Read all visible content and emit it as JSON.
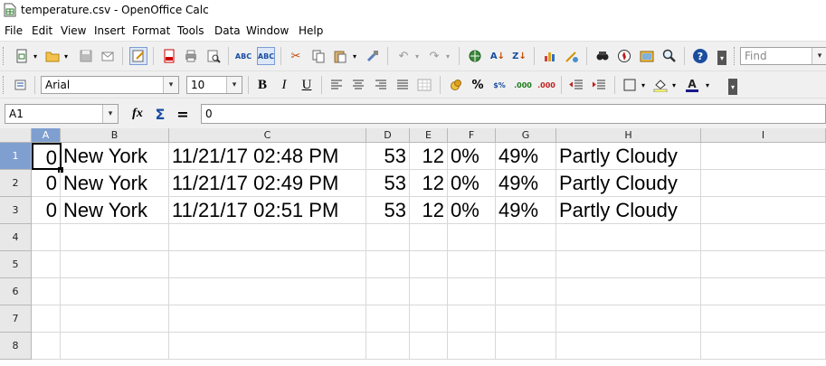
{
  "window": {
    "title": "temperature.csv - OpenOffice Calc"
  },
  "menu": [
    "File",
    "Edit",
    "View",
    "Insert",
    "Format",
    "Tools",
    "Data",
    "Window",
    "Help"
  ],
  "toolbar": {
    "find_placeholder": "Find",
    "font_name": "Arial",
    "font_size": "10",
    "bold_label": "B",
    "italic_label": "I",
    "underline_label": "U"
  },
  "formula_bar": {
    "name_box": "A1",
    "function_wizard": "fx",
    "sum": "Σ",
    "equals": "=",
    "content": "0"
  },
  "sheet": {
    "columns": [
      "A",
      "B",
      "C",
      "D",
      "E",
      "F",
      "G",
      "H",
      "I"
    ],
    "rows": [
      "1",
      "2",
      "3",
      "4",
      "5",
      "6",
      "7",
      "8"
    ],
    "data": [
      [
        "0",
        "New York",
        "11/21/17 02:48 PM",
        "53",
        "12",
        "0%",
        "49%",
        "Partly Cloudy"
      ],
      [
        "0",
        "New York",
        "11/21/17 02:49 PM",
        "53",
        "12",
        "0%",
        "49%",
        "Partly Cloudy"
      ],
      [
        "0",
        "New York",
        "11/21/17 02:51 PM",
        "53",
        "12",
        "0%",
        "49%",
        "Partly Cloudy"
      ]
    ],
    "active_cell": "A1"
  },
  "colors": {
    "header_bg": "#e8e8e8",
    "selected_header": "#7f9fd0",
    "toolbar_bg": "#f0f0f0"
  }
}
